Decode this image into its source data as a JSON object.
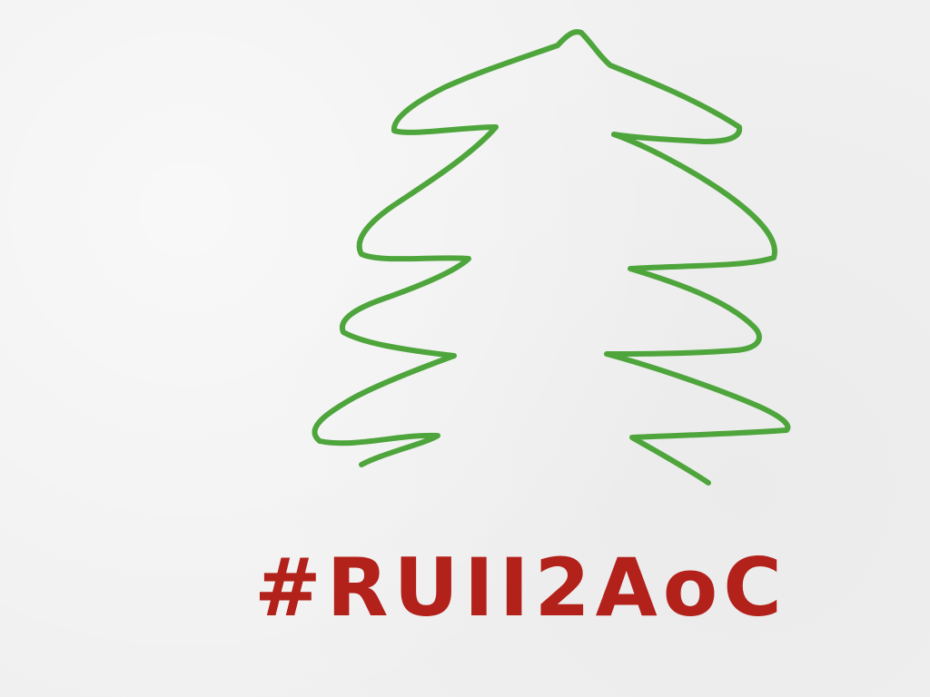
{
  "drawing": {
    "subject": "tree-sketch",
    "caption": "#RUII2AoC"
  },
  "colors": {
    "tree_stroke": "#4ea53c",
    "caption_ink": "#b3211b",
    "paper": "#f0f0f0"
  }
}
